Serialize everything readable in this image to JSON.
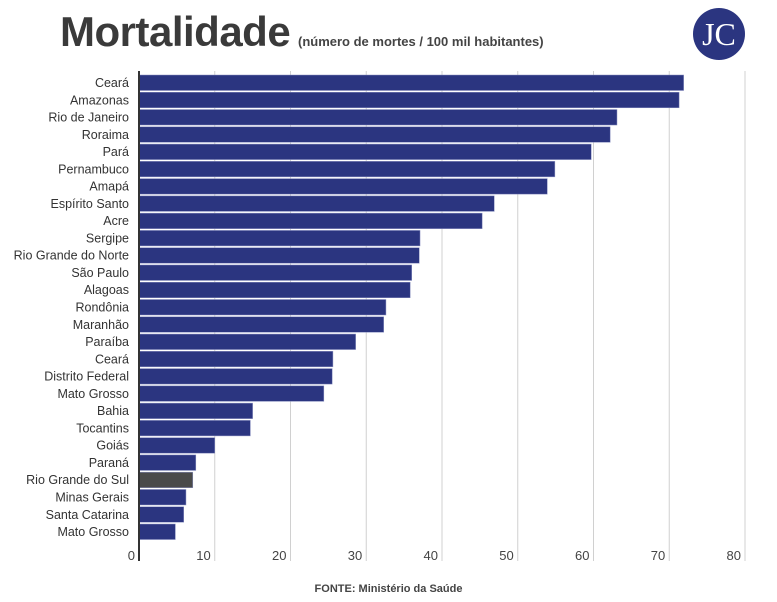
{
  "title": "Mortalidade",
  "subtitle": "(número de mortes / 100 mil habitantes)",
  "logo_text": "JC",
  "source": "FONTE: Ministério da Saúde",
  "colors": {
    "bar": "#2b3580",
    "highlight": "#4a4a4a",
    "grid": "#d0d0d0",
    "logo": "#2b3580"
  },
  "chart_data": {
    "type": "bar",
    "orientation": "horizontal",
    "categories": [
      "Ceará",
      "Amazonas",
      "Rio de Janeiro",
      "Roraima",
      "Pará",
      "Pernambuco",
      "Amapá",
      "Espírito Santo",
      "Acre",
      "Sergipe",
      "Rio Grande do Norte",
      "São Paulo",
      "Alagoas",
      "Rondônia",
      "Maranhão",
      "Paraíba",
      "Ceará",
      "Distrito Federal",
      "Mato Grosso",
      "Bahia",
      "Tocantins",
      "Goiás",
      "Paraná",
      "Rio Grande do Sul",
      "Minas Gerais",
      "Santa Catarina",
      "Mato Grosso"
    ],
    "values": [
      71.9,
      71.3,
      63.1,
      62.2,
      59.7,
      54.9,
      53.9,
      46.9,
      45.3,
      37.1,
      37.0,
      36.0,
      35.8,
      32.6,
      32.3,
      28.6,
      25.6,
      25.5,
      24.4,
      15.0,
      14.7,
      10.0,
      7.5,
      7.1,
      6.2,
      5.9,
      4.8
    ],
    "highlighted_category_index": 23,
    "xlim": [
      0,
      80
    ],
    "xticks": [
      "0",
      "10",
      "20",
      "30",
      "40",
      "50",
      "60",
      "70",
      "80"
    ],
    "grid": true,
    "legend": "none"
  }
}
